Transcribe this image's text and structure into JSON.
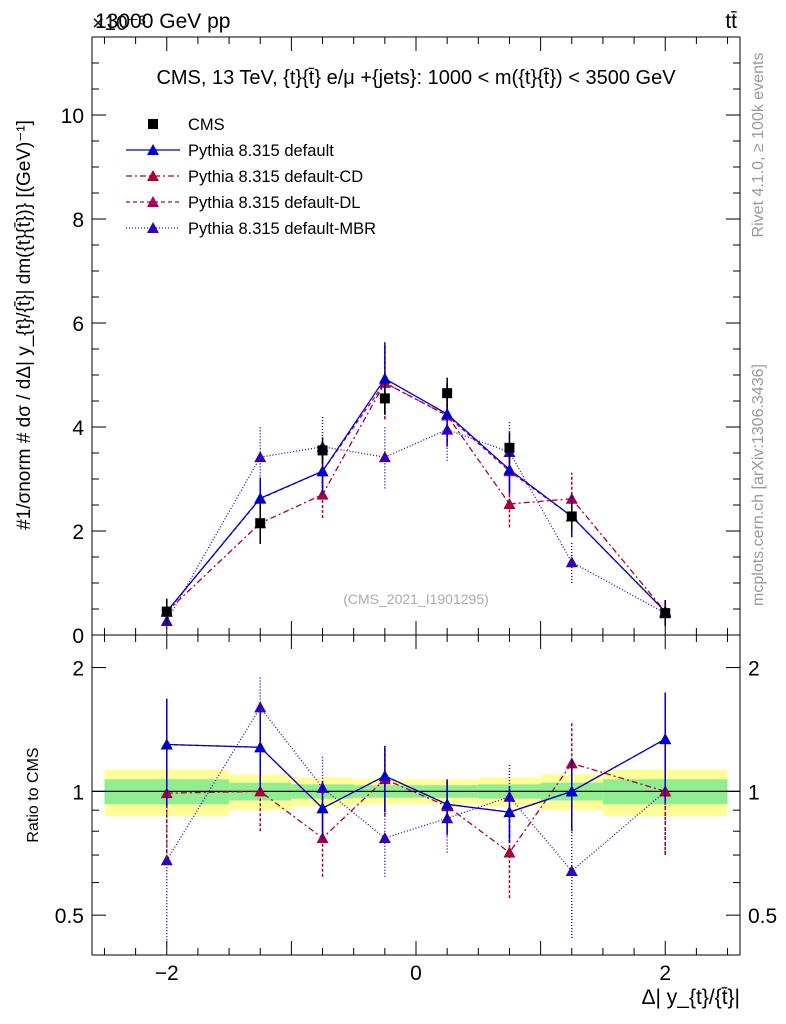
{
  "header": {
    "left": "13000 GeV pp",
    "right": "tt̄",
    "exponent": "×10⁻³"
  },
  "side": {
    "rivet": "Rivet 4.1.0, ≥ 100k events",
    "mcplots": "mcplots.cern.ch [arXiv:1306.3436]"
  },
  "colors": {
    "cms": "#000000",
    "default": "#0000cc",
    "cd": "#aa0033",
    "dl": "#aa0066",
    "mbr": "#3300bb",
    "band_inner": "#90ee90",
    "band_outer": "#ffff99"
  },
  "chart_data": [
    {
      "type": "line",
      "title": "CMS, 13 TeV, {t}{t̄} e/μ +{jets}: 1000 < m({t}{t̄}) < 3500 GeV",
      "watermark": "(CMS_2021_I1901295)",
      "xlabel": "Δ| y_{t}/{t̄}|",
      "ylabel": "#1/σnorm # dσ / dΔ| y_{t}/{t̄}| dm({t}{t̄})} [(GeV)⁻¹]",
      "ylim": [
        0,
        11.5
      ],
      "xlim": [
        -2.6,
        2.6
      ],
      "yticks": [
        0,
        2,
        4,
        6,
        8,
        10
      ],
      "xticks": [
        -2,
        0,
        2
      ],
      "legend_position": "top-left",
      "x": [
        -2.0,
        -1.25,
        -0.75,
        -0.25,
        0.25,
        0.75,
        1.25,
        2.0
      ],
      "series": [
        {
          "name": "CMS",
          "key": "cms",
          "marker": "square",
          "dash": "none",
          "values": [
            0.45,
            2.15,
            3.55,
            4.55,
            4.65,
            3.6,
            2.28,
            0.42
          ],
          "errors": [
            0.25,
            0.4,
            0.25,
            0.3,
            0.3,
            0.3,
            0.25,
            0.25
          ]
        },
        {
          "name": "Pythia 8.315 default",
          "key": "default",
          "marker": "triangle",
          "dash": "none",
          "values": [
            0.45,
            2.63,
            3.15,
            4.93,
            4.25,
            3.18,
            2.28,
            0.45
          ],
          "errors": [
            0.22,
            0.4,
            0.45,
            0.7,
            0.6,
            0.45,
            0.4,
            0.22
          ]
        },
        {
          "name": "Pythia 8.315 default-CD",
          "key": "cd",
          "marker": "triangle",
          "dash": "6,3,2,3",
          "values": [
            0.45,
            2.15,
            2.7,
            4.85,
            4.22,
            2.52,
            2.62,
            0.45
          ],
          "errors": [
            0.22,
            0.4,
            0.45,
            0.7,
            0.6,
            0.45,
            0.5,
            0.22
          ]
        },
        {
          "name": "Pythia 8.315 default-DL",
          "key": "dl",
          "marker": "triangle",
          "dash": "4,3",
          "values": [
            0.45,
            2.62,
            3.15,
            4.85,
            4.22,
            3.15,
            2.28,
            0.45
          ],
          "errors": [
            0.22,
            0.4,
            0.45,
            0.7,
            0.6,
            0.45,
            0.4,
            0.22
          ]
        },
        {
          "name": "Pythia 8.315 default-MBR",
          "key": "mbr",
          "marker": "triangle",
          "dash": "1,2",
          "values": [
            0.27,
            3.42,
            3.62,
            3.42,
            3.95,
            3.52,
            1.4,
            0.42
          ],
          "errors": [
            0.15,
            0.6,
            0.6,
            0.6,
            0.6,
            0.6,
            0.4,
            0.2
          ]
        }
      ]
    },
    {
      "type": "line",
      "title": "",
      "xlabel": "Δ| y_{t}/{t̄}|",
      "ylabel": "Ratio to CMS",
      "ylim": [
        0.4,
        2.4
      ],
      "xlim": [
        -2.6,
        2.6
      ],
      "yticks": [
        0.5,
        1,
        2
      ],
      "ytick_labels": [
        "0.5",
        "1",
        "2"
      ],
      "xticks": [
        -2,
        0,
        2
      ],
      "x": [
        -2.0,
        -1.25,
        -0.75,
        -0.25,
        0.25,
        0.75,
        1.25,
        2.0
      ],
      "band_bins": [
        -2.5,
        -1.5,
        -1.0,
        -0.5,
        0.0,
        0.5,
        1.0,
        1.5,
        2.5
      ],
      "band_inner": [
        0.07,
        0.05,
        0.04,
        0.035,
        0.035,
        0.04,
        0.05,
        0.07
      ],
      "band_outer": [
        0.13,
        0.1,
        0.08,
        0.07,
        0.07,
        0.08,
        0.1,
        0.13
      ],
      "series": [
        {
          "name": "Pythia 8.315 default",
          "key": "default",
          "dash": "none",
          "values": [
            1.3,
            1.28,
            0.91,
            1.09,
            0.93,
            0.89,
            1.0,
            1.34
          ],
          "errors": [
            0.38,
            0.28,
            0.15,
            0.2,
            0.14,
            0.14,
            0.2,
            0.4
          ]
        },
        {
          "name": "Pythia 8.315 default-CD",
          "key": "cd",
          "dash": "6,3,2,3",
          "values": [
            0.99,
            1.0,
            0.77,
            1.07,
            0.92,
            0.71,
            1.17,
            1.0
          ],
          "errors": [
            0.3,
            0.2,
            0.15,
            0.2,
            0.14,
            0.16,
            0.3,
            0.3
          ]
        },
        {
          "name": "Pythia 8.315 default-DL",
          "key": "dl",
          "dash": "4,3",
          "values": [
            1.3,
            1.28,
            0.91,
            1.09,
            0.93,
            0.89,
            1.0,
            1.34
          ],
          "errors": [
            0.38,
            0.28,
            0.15,
            0.2,
            0.14,
            0.14,
            0.2,
            0.4
          ]
        },
        {
          "name": "Pythia 8.315 default-MBR",
          "key": "mbr",
          "dash": "1,2",
          "values": [
            0.68,
            1.6,
            1.02,
            0.77,
            0.86,
            0.97,
            0.64,
            1.0
          ],
          "errors": [
            0.3,
            0.3,
            0.2,
            0.15,
            0.15,
            0.2,
            0.2,
            0.3
          ]
        }
      ]
    }
  ]
}
